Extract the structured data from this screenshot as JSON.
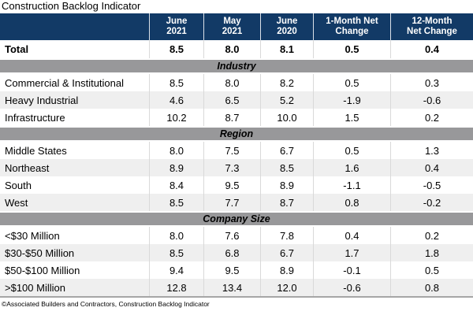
{
  "page_title": "Construction Backlog Indicator",
  "footer_note": "©Associated Builders and Contractors, Construction Backlog Indicator",
  "colors": {
    "header_bg": "#123A66",
    "header_text": "#FFFFFF",
    "section_band_bg": "#98989A",
    "row_stripe": "#EFEFEF",
    "column_separator": "#D9D9D9"
  },
  "chart_data": {
    "type": "table",
    "title": "Construction Backlog Indicator",
    "columns": [
      "June\n2021",
      "May\n2021",
      "June\n2020",
      "1-Month Net\nChange",
      "12-Month\nNet Change"
    ],
    "total": {
      "label": "Total",
      "values": [
        "8.5",
        "8.0",
        "8.1",
        "0.5",
        "0.4"
      ]
    },
    "sections": [
      {
        "name": "Industry",
        "rows": [
          {
            "label": "Commercial & Institutional",
            "values": [
              "8.5",
              "8.0",
              "8.2",
              "0.5",
              "0.3"
            ]
          },
          {
            "label": "Heavy Industrial",
            "values": [
              "4.6",
              "6.5",
              "5.2",
              "-1.9",
              "-0.6"
            ]
          },
          {
            "label": "Infrastructure",
            "values": [
              "10.2",
              "8.7",
              "10.0",
              "1.5",
              "0.2"
            ]
          }
        ]
      },
      {
        "name": "Region",
        "rows": [
          {
            "label": "Middle States",
            "values": [
              "8.0",
              "7.5",
              "6.7",
              "0.5",
              "1.3"
            ]
          },
          {
            "label": "Northeast",
            "values": [
              "8.9",
              "7.3",
              "8.5",
              "1.6",
              "0.4"
            ]
          },
          {
            "label": "South",
            "values": [
              "8.4",
              "9.5",
              "8.9",
              "-1.1",
              "-0.5"
            ]
          },
          {
            "label": "West",
            "values": [
              "8.5",
              "7.7",
              "8.7",
              "0.8",
              "-0.2"
            ]
          }
        ]
      },
      {
        "name": "Company Size",
        "rows": [
          {
            "label": "<$30 Million",
            "values": [
              "8.0",
              "7.6",
              "7.8",
              "0.4",
              "0.2"
            ]
          },
          {
            "label": "$30-$50 Million",
            "values": [
              "8.5",
              "6.8",
              "6.7",
              "1.7",
              "1.8"
            ]
          },
          {
            "label": "$50-$100 Million",
            "values": [
              "9.4",
              "9.5",
              "8.9",
              "-0.1",
              "0.5"
            ]
          },
          {
            "label": ">$100 Million",
            "values": [
              "12.8",
              "13.4",
              "12.0",
              "-0.6",
              "0.8"
            ]
          }
        ]
      }
    ],
    "source_note": "©Associated Builders and Contractors, Construction Backlog Indicator"
  }
}
